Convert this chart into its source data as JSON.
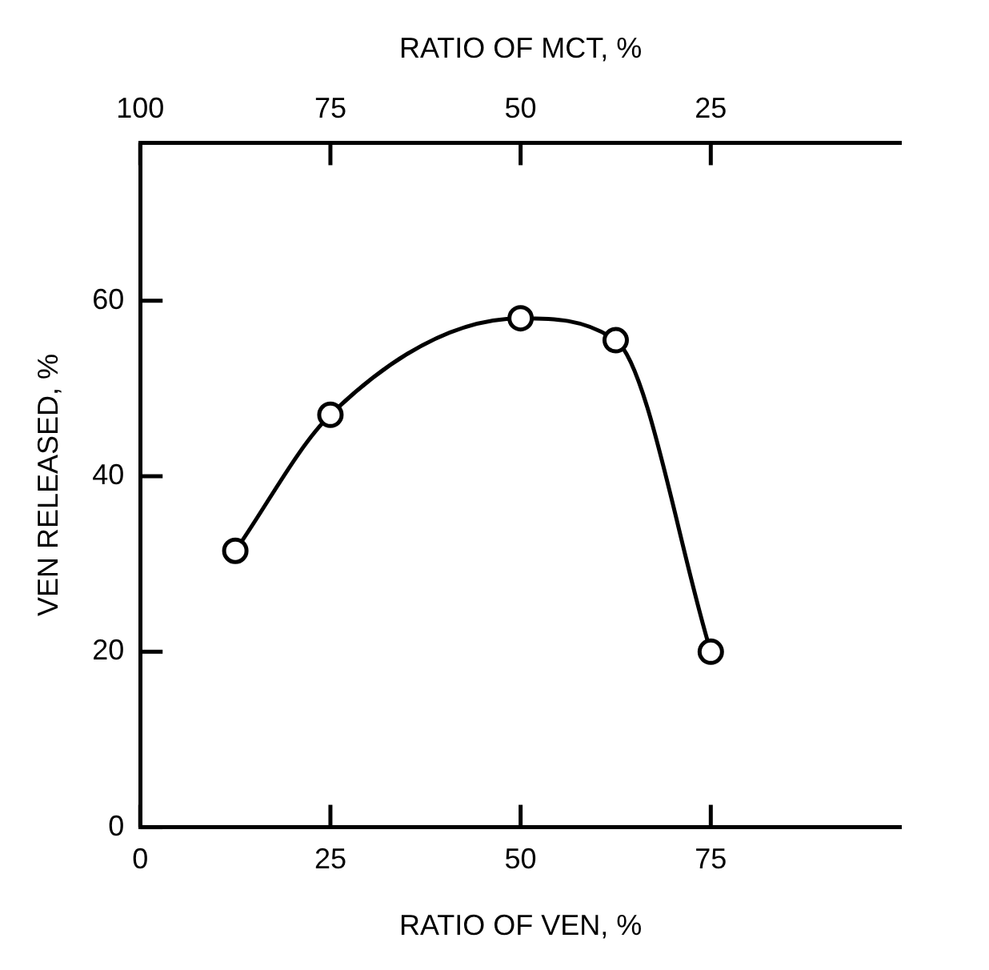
{
  "chart_data": {
    "type": "line",
    "xlabel": "RATIO OF VEN, %",
    "x2label": "RATIO OF MCT, %",
    "ylabel": "VEN RELEASED, %",
    "x": [
      12.5,
      25,
      50,
      62.5,
      75
    ],
    "series": [
      {
        "color": "#000000",
        "values": [
          31.5,
          47,
          58,
          55.5,
          20
        ]
      }
    ],
    "xlim": [
      0,
      100
    ],
    "xticks": [
      0,
      25,
      50,
      75
    ],
    "x2lim": [
      100,
      0
    ],
    "x2ticks": [
      100,
      75,
      50,
      25
    ],
    "ylim": [
      0,
      78
    ],
    "yticks": [
      0,
      20,
      40,
      60
    ],
    "marker": "circle",
    "line_style": "solid",
    "grid": false,
    "legend": false
  }
}
